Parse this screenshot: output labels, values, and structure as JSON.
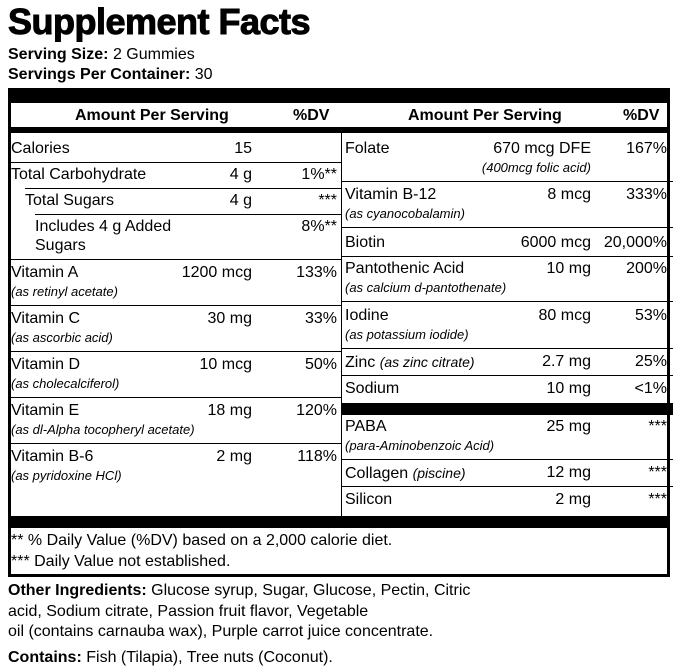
{
  "title": "Supplement Facts",
  "serving_size": {
    "label": "Serving Size:",
    "value": "2 Gummies"
  },
  "servings_per_container": {
    "label": "Servings Per Container:",
    "value": "30"
  },
  "headers": {
    "amount": "Amount Per Serving",
    "dv": "%DV"
  },
  "left_rows": [
    {
      "name": "Calories",
      "amount": "15",
      "dv": ""
    },
    {
      "name": "Total Carbohydrate",
      "amount": "4 g",
      "dv": "1%**"
    },
    {
      "name": "Total Sugars",
      "amount": "4 g",
      "dv": "***"
    },
    {
      "name": "Includes 4 g Added",
      "name2": "Sugars",
      "amount": "",
      "dv": "8%**"
    },
    {
      "name": "Vitamin A",
      "sub": "(as retinyl acetate)",
      "amount": "1200 mcg",
      "dv": "133%"
    },
    {
      "name": "Vitamin C",
      "sub": "(as ascorbic acid)",
      "amount": "30 mg",
      "dv": "33%"
    },
    {
      "name": "Vitamin D",
      "sub": "(as cholecalciferol)",
      "amount": "10 mcg",
      "dv": "50%"
    },
    {
      "name": "Vitamin E",
      "sub": "(as dl-Alpha tocopheryl acetate)",
      "amount": "18 mg",
      "dv": "120%"
    },
    {
      "name": "Vitamin B-6",
      "sub": "(as pyridoxine HCl)",
      "amount": "2 mg",
      "dv": "118%"
    }
  ],
  "right_rows": [
    {
      "name": "Folate",
      "amount": "670 mcg DFE",
      "sub_right": "(400mcg folic acid)",
      "dv": "167%"
    },
    {
      "name": "Vitamin B-12",
      "sub": "(as cyanocobalamin)",
      "amount": "8 mcg",
      "dv": "333%"
    },
    {
      "name": "Biotin",
      "amount": "6000 mcg",
      "dv": "20,000%"
    },
    {
      "name": "Pantothenic Acid",
      "sub": "(as calcium d-pantothenate)",
      "amount": "10 mg",
      "dv": "200%"
    },
    {
      "name": "Iodine",
      "sub": "(as potassium iodide)",
      "amount": "80 mcg",
      "dv": "53%"
    },
    {
      "name": "Zinc",
      "inline": "(as zinc citrate)",
      "amount": "2.7 mg",
      "dv": "25%"
    },
    {
      "name": "Sodium",
      "amount": "10 mg",
      "dv": "<1%"
    },
    {
      "name": "PABA",
      "sub": "(para-Aminobenzoic Acid)",
      "amount": "25 mg",
      "dv": "***"
    },
    {
      "name": "Collagen",
      "inline": "(piscine)",
      "amount": "12 mg",
      "dv": "***"
    },
    {
      "name": "Silicon",
      "amount": "2 mg",
      "dv": "***"
    }
  ],
  "footnotes": [
    "** % Daily Value (%DV) based on a 2,000 calorie diet.",
    "*** Daily Value not established."
  ],
  "other_ingredients": {
    "label": "Other Ingredients:",
    "line1": "Glucose syrup, Sugar, Glucose, Pectin, Citric",
    "line2": "acid, Sodium citrate, Passion fruit flavor, Vegetable",
    "line3": "oil (contains carnauba wax), Purple carrot juice concentrate."
  },
  "contains": {
    "label": "Contains:",
    "value": "Fish (Tilapia), Tree nuts (Coconut)."
  }
}
